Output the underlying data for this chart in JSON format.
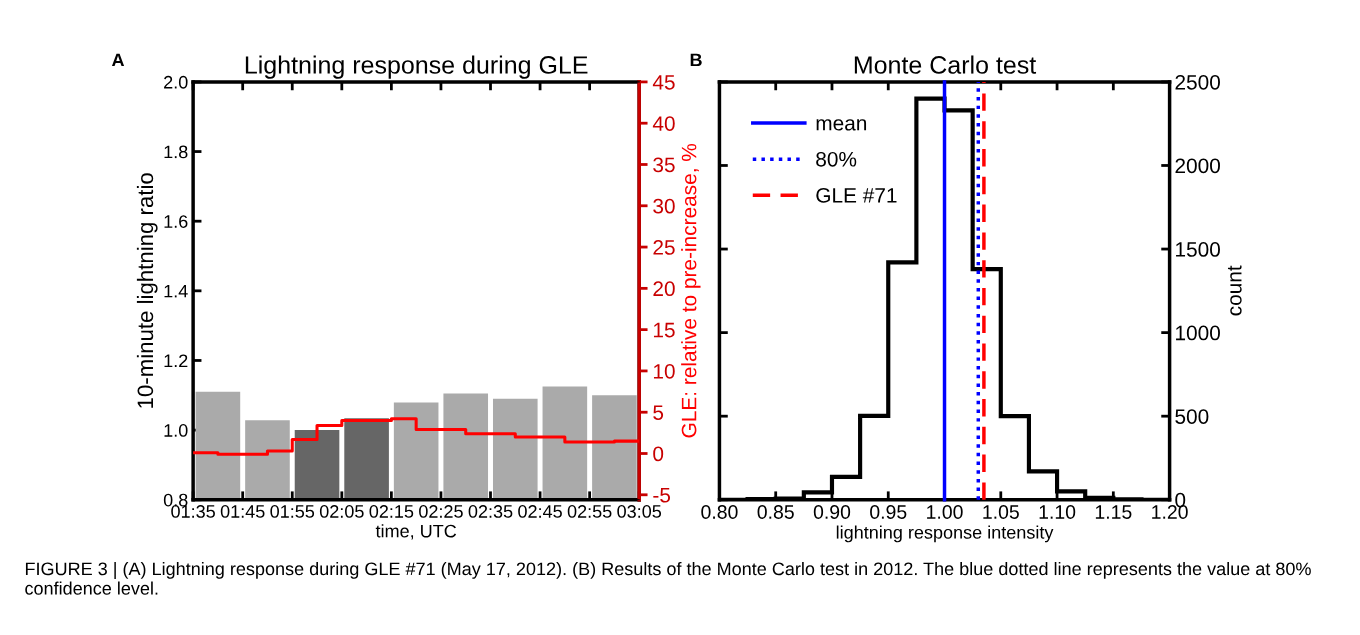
{
  "chart_data": [
    {
      "type": "bar",
      "title": "Lightning response during GLE",
      "xlabel": "time, UTC",
      "ylabel": "10-minute lightning ratio",
      "y2label": "GLE: relative to pre-increase, %",
      "annotations": [
        "A",
        "FIGURE 3 | (A) Lightning response during GLE #71 (May 17, 2012). (B) Results of the Monte Carlo test in 2012. The blue dotted line represents the value at 80% confidence level."
      ],
      "x": [
        "2012-05-17T01:40",
        "2012-05-17T01:50",
        "2012-05-17T02:00",
        "2012-05-17T02:10",
        "2012-05-17T02:20",
        "2012-05-17T02:30",
        "2012-05-17T02:40",
        "2012-05-17T02:50",
        "2012-05-17T03:00"
      ],
      "series": [
        {
          "type": "bar",
          "colors": [
            "#aaaaaa",
            "#aaaaaa",
            "#666666",
            "#666666",
            "#aaaaaa",
            "#aaaaaa",
            "#aaaaaa",
            "#aaaaaa",
            "#aaaaaa"
          ],
          "values": [
            1.11,
            1.028,
            1.0,
            1.034,
            1.079,
            1.105,
            1.09,
            1.125,
            1.1
          ]
        },
        {
          "type": "step",
          "axis": "y2",
          "color": "#ff0000",
          "x": [
            "2012-05-17T01:35",
            "2012-05-17T01:40",
            "2012-05-17T01:45",
            "2012-05-17T01:50",
            "2012-05-17T01:55",
            "2012-05-17T02:00",
            "2012-05-17T02:05",
            "2012-05-17T02:10",
            "2012-05-17T02:15",
            "2012-05-17T02:20",
            "2012-05-17T02:25",
            "2012-05-17T02:30",
            "2012-05-17T02:35",
            "2012-05-17T02:40",
            "2012-05-17T02:45",
            "2012-05-17T02:50",
            "2012-05-17T02:55",
            "2012-05-17T03:00",
            "2012-05-17T03:05"
          ],
          "values": [
            0.1,
            -0.1,
            -0.1,
            0.3,
            1.7,
            3.4,
            4.0,
            4.0,
            4.2,
            2.9,
            2.9,
            2.4,
            2.4,
            2.0,
            2.0,
            1.4,
            1.4,
            1.5,
            1.5
          ]
        }
      ],
      "xlim": [
        "2012-05-17T01:35",
        "2012-05-17T03:05"
      ],
      "xticks": [
        {
          "value": "2012-05-17T01:35",
          "label": "01:35"
        },
        {
          "value": "2012-05-17T01:45",
          "label": "01:45"
        },
        {
          "value": "2012-05-17T01:55",
          "label": "01:55"
        },
        {
          "value": "2012-05-17T02:05",
          "label": "02:05"
        },
        {
          "value": "2012-05-17T02:15",
          "label": "02:15"
        },
        {
          "value": "2012-05-17T02:25",
          "label": "02:25"
        },
        {
          "value": "2012-05-17T02:35",
          "label": "02:35"
        },
        {
          "value": "2012-05-17T02:45",
          "label": "02:45"
        },
        {
          "value": "2012-05-17T02:55",
          "label": "02:55"
        },
        {
          "value": "2012-05-17T03:05",
          "label": "03:05"
        }
      ],
      "ylim": [
        0.8,
        2.0
      ],
      "yticks": [
        0.8,
        {
          "value": 1.0,
          "label": "1.0"
        },
        1.2,
        1.4,
        1.6,
        1.8,
        {
          "value": 2.0,
          "label": "2.0"
        }
      ],
      "y2lim": [
        -5.6,
        45
      ],
      "y2ticks": [
        -5,
        0,
        5,
        10,
        15,
        20,
        25,
        30,
        35,
        40,
        45
      ]
    },
    {
      "type": "histogram",
      "title": "Monte Carlo test",
      "xlabel": "lightning response intensity",
      "ylabel": "count",
      "annotations": [
        "B"
      ],
      "color": "#000000",
      "bins": [
        0.8,
        0.825,
        0.85,
        0.875,
        0.9,
        0.925,
        0.95,
        0.975,
        1.0,
        1.025,
        1.05,
        1.075,
        1.1,
        1.125,
        1.15,
        1.175,
        1.2
      ],
      "values": [
        0,
        4,
        7,
        44,
        137,
        502,
        1420,
        2400,
        2330,
        1380,
        500,
        170,
        50,
        11,
        3,
        0
      ],
      "xlim": [
        0.8,
        1.2
      ],
      "xticks": [
        {
          "value": 0.8,
          "label": "0.80"
        },
        0.85,
        {
          "value": 0.9,
          "label": "0.90"
        },
        0.95,
        {
          "value": 1.0,
          "label": "1.00"
        },
        1.05,
        {
          "value": 1.1,
          "label": "1.10"
        },
        1.15,
        {
          "value": 1.2,
          "label": "1.20"
        }
      ],
      "ylim": [
        0,
        2500
      ],
      "yticks": [
        0,
        500,
        1000,
        1500,
        2000,
        2500
      ],
      "series": [
        {
          "type": "line",
          "name": "mean",
          "color": "#0000ff",
          "line_style": "solid",
          "x": [
            1.0,
            1.0
          ],
          "values": [
            0,
            2500
          ]
        },
        {
          "type": "line",
          "name": "80%",
          "color": "#0000ff",
          "line_style": "dotted",
          "x": [
            1.03,
            1.03
          ],
          "values": [
            0,
            2500
          ]
        },
        {
          "type": "line",
          "name": "GLE #71",
          "color": "#ff0000",
          "line_style": "dashed",
          "x": [
            1.035,
            1.035
          ],
          "values": [
            0,
            2500
          ]
        }
      ],
      "legend": "top left"
    }
  ]
}
